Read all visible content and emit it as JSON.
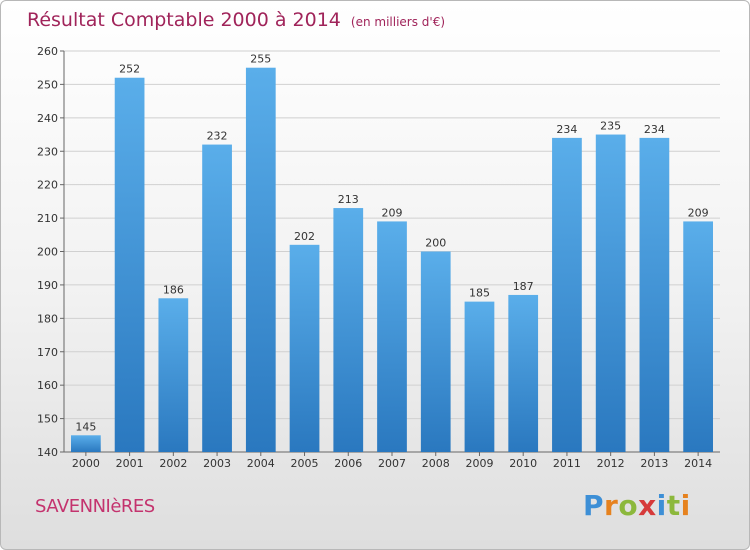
{
  "chart_data": {
    "type": "bar",
    "title": "Résultat Comptable 2000 à 2014",
    "unit_label": "(en milliers d'€)",
    "categories": [
      "2000",
      "2001",
      "2002",
      "2003",
      "2004",
      "2005",
      "2006",
      "2007",
      "2008",
      "2009",
      "2010",
      "2011",
      "2012",
      "2013",
      "2014"
    ],
    "values": [
      145,
      252,
      186,
      232,
      255,
      202,
      213,
      209,
      200,
      185,
      187,
      234,
      235,
      234,
      209
    ],
    "ylim": [
      140,
      260
    ],
    "yticks": [
      140,
      150,
      160,
      170,
      180,
      190,
      200,
      210,
      220,
      230,
      240,
      250,
      260
    ],
    "grid": true,
    "legend": "none",
    "bar_color": "#3b8fd6"
  },
  "footer": {
    "commune": "SAVENNIèRES",
    "logo_letters": [
      "P",
      "r",
      "o",
      "x",
      "i",
      "t",
      "i"
    ],
    "logo_colors": [
      "#3d8fd6",
      "#e6821e",
      "#8cb83c",
      "#d63a3a",
      "#3d8fd6",
      "#8cb83c",
      "#e6821e"
    ]
  }
}
